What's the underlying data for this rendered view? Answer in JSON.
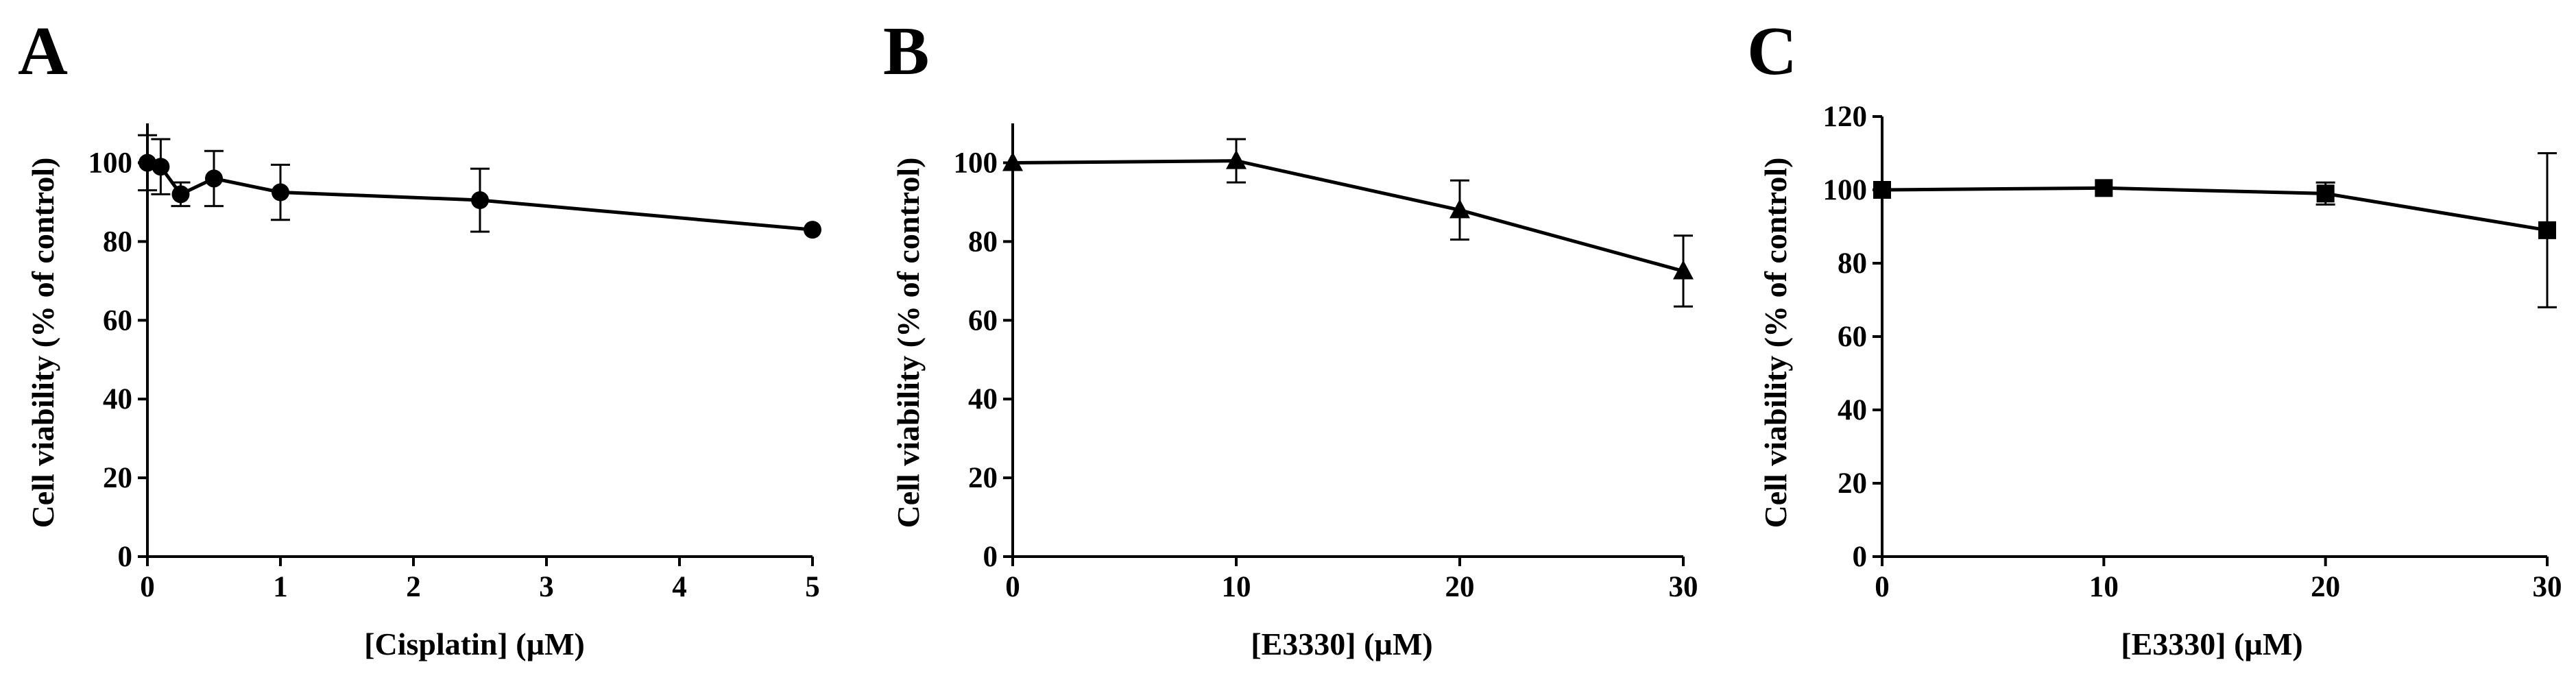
{
  "figure": {
    "panels": [
      "A",
      "B",
      "C"
    ]
  },
  "chart_data": [
    {
      "panel": "A",
      "type": "line",
      "xlabel": "[Cisplatin] (µM)",
      "ylabel": "Cell viability (% of control)",
      "xlim": [
        0,
        5
      ],
      "ylim": [
        0,
        110
      ],
      "xticks": [
        0,
        1,
        2,
        3,
        4,
        5
      ],
      "yticks": [
        0,
        20,
        40,
        60,
        80,
        100
      ],
      "marker": "circle",
      "grid": false,
      "series": [
        {
          "x": [
            0,
            0.1,
            0.25,
            0.5,
            1,
            2.5,
            5
          ],
          "y": [
            100,
            99,
            92,
            96,
            92.5,
            90.5,
            83
          ],
          "error": [
            7,
            7,
            3,
            7,
            7,
            8,
            0
          ]
        }
      ]
    },
    {
      "panel": "B",
      "type": "line",
      "xlabel": "[E3330] (µM)",
      "ylabel": "Cell viability (% of control)",
      "xlim": [
        0,
        30
      ],
      "ylim": [
        0,
        110
      ],
      "xticks": [
        0,
        10,
        20,
        30
      ],
      "yticks": [
        0,
        20,
        40,
        60,
        80,
        100
      ],
      "marker": "triangle",
      "grid": false,
      "series": [
        {
          "x": [
            0,
            10,
            20,
            30
          ],
          "y": [
            100,
            100.5,
            88,
            72.5
          ],
          "error": [
            0,
            5.5,
            7.5,
            9
          ]
        }
      ]
    },
    {
      "panel": "C",
      "type": "line",
      "xlabel": "[E3330] (µM)",
      "ylabel": "Cell viability (% of control)",
      "xlim": [
        0,
        30
      ],
      "ylim": [
        0,
        120
      ],
      "xticks": [
        0,
        10,
        20,
        30
      ],
      "yticks": [
        0,
        20,
        40,
        60,
        80,
        100,
        120
      ],
      "marker": "square",
      "grid": false,
      "series": [
        {
          "x": [
            0,
            10,
            20,
            30
          ],
          "y": [
            100,
            100.5,
            99,
            89
          ],
          "error": [
            0,
            0,
            3,
            21
          ]
        }
      ]
    }
  ]
}
